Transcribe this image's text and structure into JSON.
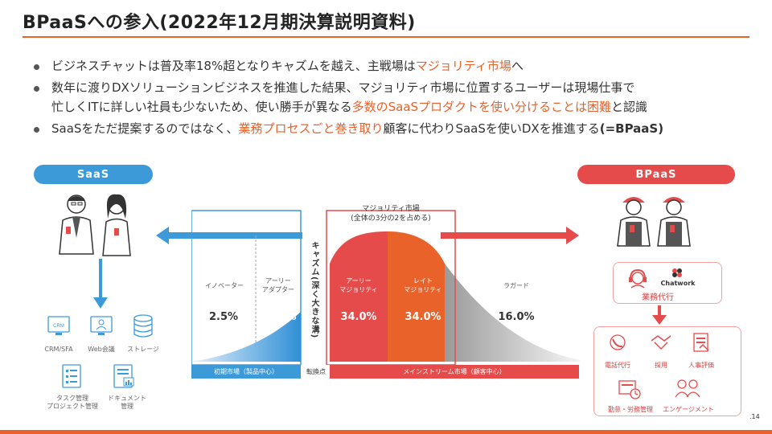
{
  "title": "BPaaSへの参入(2022年12月期決算説明資料)",
  "bullets": [
    {
      "pre": "ビジネスチャットは普及率18%超となりキャズムを越え、主戦場は",
      "hl": "マジョリティ市場",
      "post": "へ"
    },
    {
      "line1": "数年に渡りDXソリューションビジネスを推進した結果、マジョリティ市場に位置するユーザーは現場仕事で",
      "pre": "忙しくITに詳しい社員も少ないため、使い勝手が異なる",
      "hl": "多数のSaaSプロダクトを使い分けることは困難",
      "post": "と認識"
    },
    {
      "pre": "SaaSをただ提案するのではなく、",
      "hl": "業務プロセスごと巻き取り",
      "mid": "顧客に代わりSaaSを使いDXを推進する",
      "bold": "(=BPaaS)"
    }
  ],
  "saas": {
    "label": "SaaS",
    "tools": [
      "CRM/SFA",
      "Web会議",
      "ストレージ",
      "タスク管理\nプロジェクト管理",
      "ドキュメント\n管理"
    ],
    "icon_texts": {
      "crm": "CRM"
    }
  },
  "bpaas": {
    "label": "BPaaS",
    "service_label": "業務代行",
    "chatwork": "Chatwork",
    "tasks": [
      "電話代行",
      "採用",
      "人事評価",
      "勤怠・労務管理",
      "エンゲージメント"
    ]
  },
  "curve": {
    "majority_title": "マジョリティ市場\n(全体の3分の2を占める)",
    "chasm": "キャズム(深く大きな溝)",
    "segments": [
      {
        "name": "イノベーター",
        "pct": "2.5%"
      },
      {
        "name": "アーリー\nアダプター",
        "pct": "13.5%"
      },
      {
        "name": "アーリー\nマジョリティ",
        "pct": "34.0%"
      },
      {
        "name": "レイト\nマジョリティ",
        "pct": "34.0%"
      },
      {
        "name": "ラガード",
        "pct": "16.0%"
      }
    ],
    "bar_left": "初期市場（製品中心）",
    "bar_mid": "転換点",
    "bar_right": "メインストリーム市場（顧客中心）"
  },
  "page_number": ".14",
  "colors": {
    "accent": "#e8622a",
    "blue": "#3d9ad9",
    "red": "#e54b4b"
  }
}
